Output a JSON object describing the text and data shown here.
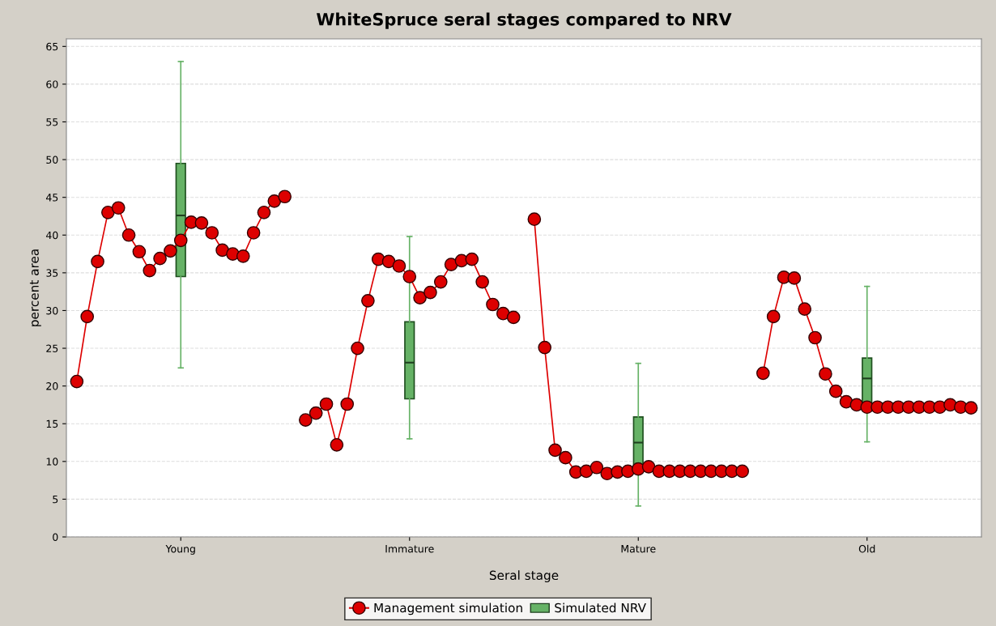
{
  "chart_data": {
    "type": "box",
    "title": "WhiteSpruce seral stages compared to NRV",
    "xlabel": "Seral stage",
    "ylabel": "percent area",
    "categories": [
      null,
      null,
      null,
      null,
      null,
      null,
      null,
      null,
      null,
      null,
      "Young",
      null,
      null,
      null,
      null,
      null,
      null,
      null,
      null,
      null,
      null,
      null,
      null,
      null,
      null,
      null,
      null,
      null,
      null,
      null,
      null,
      null,
      "Immature",
      null,
      null,
      null,
      null,
      null,
      null,
      null,
      null,
      null,
      null,
      null,
      null,
      null,
      null,
      null,
      null,
      null,
      null,
      null,
      null,
      null,
      "Mature",
      null,
      null,
      null,
      null,
      null,
      null,
      null,
      null,
      null,
      null,
      null,
      null,
      null,
      null,
      null,
      null,
      null,
      null,
      null,
      null,
      null,
      "Old",
      null,
      null,
      null,
      null,
      null,
      null,
      null,
      null,
      null,
      null,
      null
    ],
    "ylim": [
      0,
      66
    ],
    "yticks": [
      0,
      5,
      10,
      15,
      20,
      25,
      30,
      35,
      40,
      45,
      50,
      55,
      60,
      65
    ],
    "grid": "y",
    "legend": "bottom",
    "series": [
      {
        "name": "Simulated NRV",
        "color": "#66b266",
        "boxes": [
          null,
          null,
          null,
          null,
          null,
          null,
          null,
          null,
          null,
          null,
          {
            "low": 22.4,
            "q1": 34.5,
            "median": 42.6,
            "q3": 49.5,
            "high": 63.0
          },
          null,
          null,
          null,
          null,
          null,
          null,
          null,
          null,
          null,
          null,
          null,
          null,
          null,
          null,
          null,
          null,
          null,
          null,
          null,
          null,
          null,
          {
            "low": 13.0,
            "q1": 18.3,
            "median": 23.1,
            "q3": 28.5,
            "high": 39.8
          },
          null,
          null,
          null,
          null,
          null,
          null,
          null,
          null,
          null,
          null,
          null,
          null,
          null,
          null,
          null,
          null,
          null,
          null,
          null,
          null,
          null,
          {
            "low": 4.1,
            "q1": 8.6,
            "median": 12.5,
            "q3": 15.9,
            "high": 23.0
          },
          null,
          null,
          null,
          null,
          null,
          null,
          null,
          null,
          null,
          null,
          null,
          null,
          null,
          null,
          null,
          null,
          null,
          null,
          null,
          null,
          null,
          {
            "low": 12.6,
            "q1": 17.5,
            "median": 21.0,
            "q3": 23.7,
            "high": 33.2
          },
          null,
          null,
          null,
          null,
          null,
          null,
          null,
          null,
          null,
          null,
          null
        ]
      },
      {
        "name": "Management simulation",
        "type": "line",
        "color": "#dd0000",
        "marker": "circle",
        "values": [
          20.6,
          29.2,
          36.5,
          43.0,
          43.6,
          40.0,
          37.8,
          35.3,
          36.9,
          37.9,
          39.3,
          41.7,
          41.6,
          40.3,
          38.0,
          37.5,
          37.2,
          40.3,
          43.0,
          44.5,
          45.1,
          null,
          15.5,
          16.4,
          17.6,
          12.2,
          17.6,
          25.0,
          31.3,
          36.8,
          36.5,
          35.9,
          34.5,
          31.7,
          32.4,
          33.8,
          36.1,
          36.6,
          36.8,
          33.8,
          30.8,
          29.6,
          29.1,
          null,
          42.1,
          25.1,
          11.5,
          10.5,
          8.6,
          8.7,
          9.2,
          8.4,
          8.6,
          8.7,
          9.0,
          9.3,
          8.7,
          8.7,
          8.7,
          8.7,
          8.7,
          8.7,
          8.7,
          8.7,
          8.7,
          null,
          21.7,
          29.2,
          34.4,
          34.3,
          30.2,
          26.4,
          21.6,
          19.3,
          17.9,
          17.5,
          17.2,
          17.2,
          17.2,
          17.2,
          17.2,
          17.2,
          17.2,
          17.2,
          17.5,
          17.2,
          17.1,
          null
        ]
      }
    ]
  }
}
